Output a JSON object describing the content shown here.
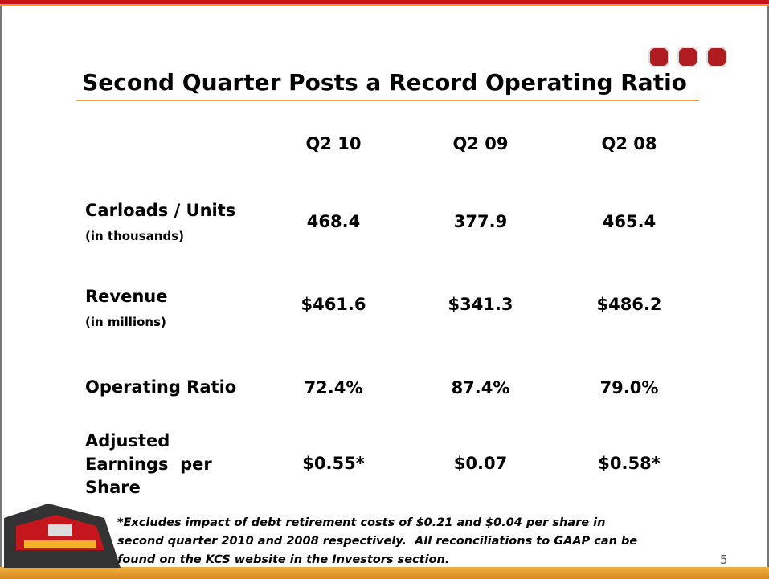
{
  "header": {
    "title": "Second Quarter Posts a Record Operating Ratio"
  },
  "table": {
    "columns": [
      "Q2 10",
      "Q2 09",
      "Q2 08"
    ],
    "rows": [
      {
        "label_lines": [
          "Carloads / Units"
        ],
        "sublabel": "(in thousands)",
        "values": [
          "468.4",
          "377.9",
          "465.4"
        ]
      },
      {
        "label_lines": [
          "Revenue"
        ],
        "sublabel": "(in millions)",
        "values": [
          "$461.6",
          "$341.3",
          "$486.2"
        ]
      },
      {
        "label_lines": [
          "Operating Ratio"
        ],
        "values": [
          "72.4%",
          "87.4%",
          "79.0%"
        ]
      },
      {
        "label_lines": [
          "Adjusted",
          "Earnings  per",
          "Share"
        ],
        "values": [
          "$0.55*",
          "$0.07",
          "$0.58*"
        ]
      }
    ]
  },
  "footnote": {
    "lines": [
      "*Excludes impact of debt retirement costs of $0.21 and $0.04 per share in",
      "second quarter 2010 and 2008 respectively.  All reconciliations to GAAP can be",
      "found on the KCS website in the Investors section."
    ]
  },
  "page_number": "5"
}
